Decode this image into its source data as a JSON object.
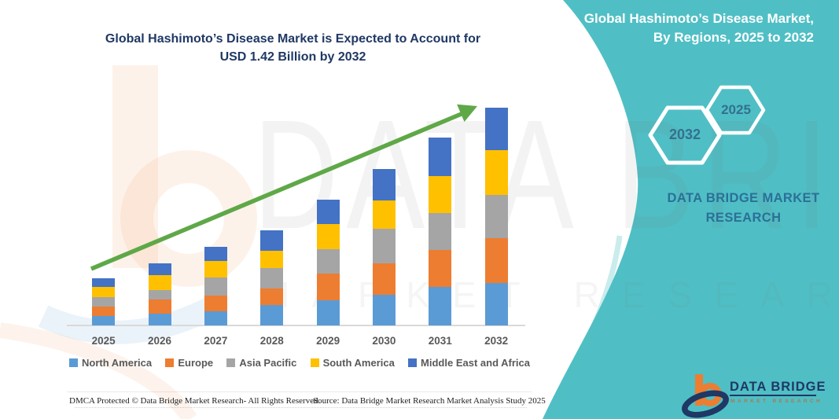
{
  "header": {
    "chart_title_line1": "Global Hashimoto’s Disease Market is Expected to Account for",
    "chart_title_line2": "USD 1.42 Billion by 2032"
  },
  "side_panel": {
    "title_line1": "Global Hashimoto’s Disease Market,",
    "title_line2": "By Regions, 2025 to 2032",
    "hexagons": [
      {
        "label": "2032"
      },
      {
        "label": "2025"
      }
    ],
    "brand_line1": "DATA BRIDGE MARKET",
    "brand_line2": "RESEARCH"
  },
  "watermark": {
    "line1": "DATA BRIDGE",
    "line2": "MARKET RESEARCH"
  },
  "chart_data": {
    "type": "bar",
    "stacked": true,
    "title": "Global Hashimoto’s Disease Market is Expected to Account for USD 1.42 Billion by 2032",
    "unit": "USD billion",
    "xlabel": "",
    "ylabel": "",
    "gridlines": false,
    "legend_position": "bottom",
    "trend_arrow": true,
    "categories": [
      "2025",
      "2026",
      "2027",
      "2028",
      "2029",
      "2030",
      "2031",
      "2032"
    ],
    "series": [
      {
        "name": "North America",
        "color": "#5B9BD5",
        "values": [
          0.064,
          0.077,
          0.093,
          0.133,
          0.164,
          0.198,
          0.249,
          0.277
        ]
      },
      {
        "name": "Europe",
        "color": "#ED7D31",
        "values": [
          0.06,
          0.091,
          0.103,
          0.108,
          0.177,
          0.207,
          0.241,
          0.293
        ]
      },
      {
        "name": "Asia Pacific",
        "color": "#A5A5A5",
        "values": [
          0.06,
          0.064,
          0.117,
          0.132,
          0.155,
          0.224,
          0.241,
          0.284
        ]
      },
      {
        "name": "South America",
        "color": "#FFC000",
        "values": [
          0.069,
          0.098,
          0.106,
          0.117,
          0.164,
          0.186,
          0.241,
          0.292
        ]
      },
      {
        "name": "Middle East and Africa",
        "color": "#4472C4",
        "values": [
          0.057,
          0.077,
          0.095,
          0.129,
          0.159,
          0.205,
          0.253,
          0.276
        ]
      }
    ],
    "estimated_totals": [
      0.31,
      0.41,
      0.51,
      0.62,
      0.82,
      1.02,
      1.23,
      1.42
    ]
  },
  "colors": {
    "panel_teal": "#4FBFC5",
    "arrow_green": "#5FA848",
    "title_navy": "#1F3864",
    "axis_text_gray": "#595959",
    "hex_label_blue": "#34708F"
  },
  "footer": {
    "dmca": "DMCA Protected © Data Bridge Market Research-  All Rights Reserved.",
    "source": "Source: Data Bridge Market Research  Market Analysis Study 2025",
    "logo_brand": "DATA BRIDGE",
    "logo_sub": "MARKET RESEARCH"
  }
}
